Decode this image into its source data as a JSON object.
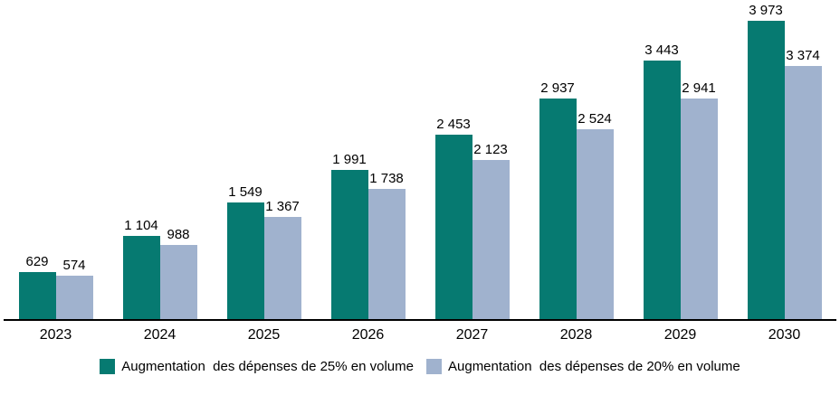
{
  "chart_data": {
    "type": "bar",
    "title": "",
    "xlabel": "",
    "ylabel": "",
    "ylim": [
      0,
      3973
    ],
    "grid": false,
    "legend_position": "bottom",
    "value_labels": true,
    "background_color": "#FFFFFF",
    "axis_line_color": "#000000",
    "text_color": "#000000",
    "categories": [
      "2023",
      "2024",
      "2025",
      "2026",
      "2027",
      "2028",
      "2029",
      "2030"
    ],
    "series": [
      {
        "name": "Augmentation  des dépenses de 25% en volume",
        "color": "#067A71",
        "values": [
          629,
          1104,
          1549,
          1991,
          2453,
          2937,
          3443,
          3973
        ],
        "labels": [
          "629",
          "1 104",
          "1 549",
          "1 991",
          "2 453",
          "2 937",
          "3 443",
          "3 973"
        ]
      },
      {
        "name": "Augmentation  des dépenses de 20% en volume",
        "color": "#A0B2CE",
        "values": [
          574,
          988,
          1367,
          1738,
          2123,
          2524,
          2941,
          3374
        ],
        "labels": [
          "574",
          "988",
          "1 367",
          "1 738",
          "2 123",
          "2 524",
          "2 941",
          "3 374"
        ]
      }
    ]
  }
}
